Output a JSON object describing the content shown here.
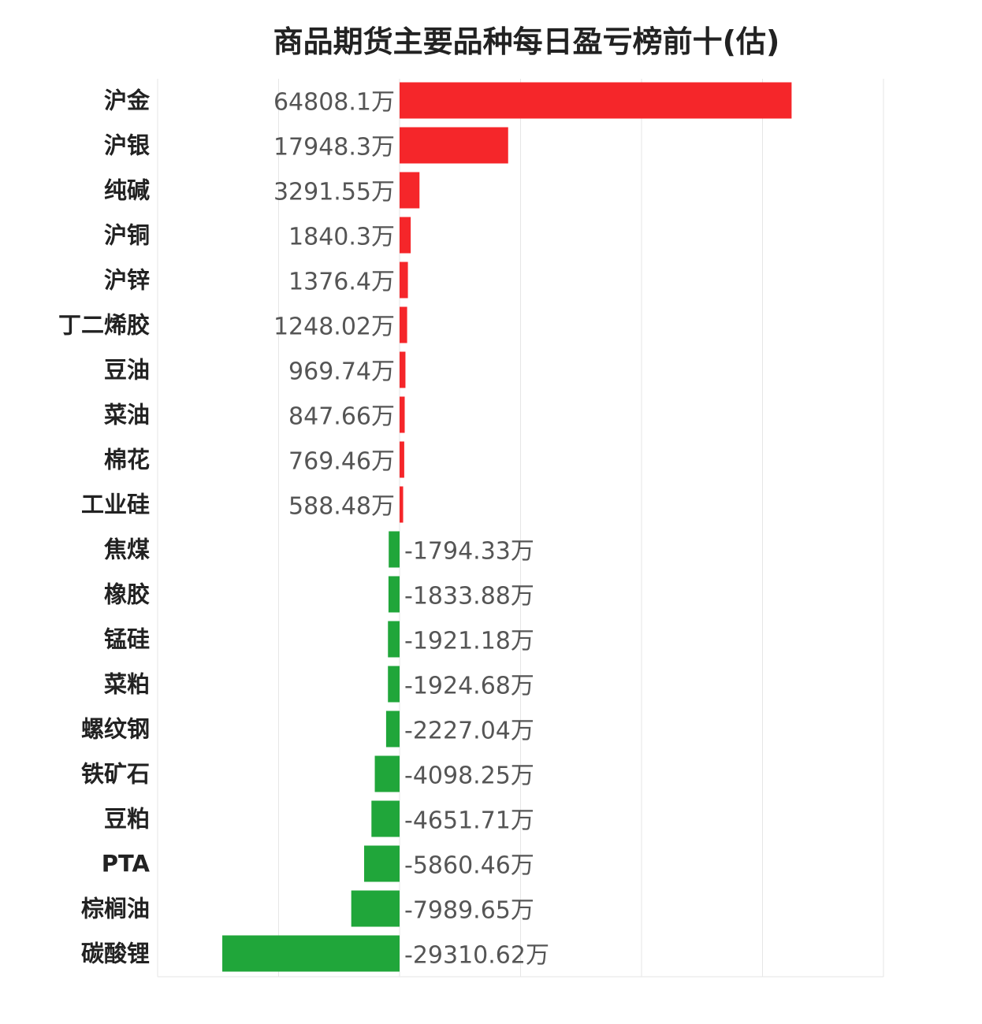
{
  "chart_data": {
    "type": "bar",
    "orientation": "horizontal",
    "title": "商品期货主要品种每日盈亏榜前十(估)",
    "xlabel": "",
    "ylabel": "",
    "unit": "万",
    "categories": [
      "沪金",
      "沪银",
      "纯碱",
      "沪铜",
      "沪锌",
      "丁二烯胶",
      "豆油",
      "菜油",
      "棉花",
      "工业硅",
      "焦煤",
      "橡胶",
      "锰硅",
      "菜粕",
      "螺纹钢",
      "铁矿石",
      "豆粕",
      "PTA",
      "棕榈油",
      "碳酸锂"
    ],
    "values": [
      64808.1,
      17948.3,
      3291.55,
      1840.3,
      1376.4,
      1248.02,
      969.74,
      847.66,
      769.46,
      588.48,
      -1794.33,
      -1833.88,
      -1921.18,
      -1924.68,
      -2227.04,
      -4098.25,
      -4651.71,
      -5860.46,
      -7989.65,
      -29310.62
    ],
    "value_labels": [
      "64808.1万",
      "17948.3万",
      "3291.55万",
      "1840.3万",
      "1376.4万",
      "1248.02万",
      "969.74万",
      "847.66万",
      "769.46万",
      "588.48万",
      "-1794.33万",
      "-1833.88万",
      "-1921.18万",
      "-1924.68万",
      "-2227.04万",
      "-4098.25万",
      "-4651.71万",
      "-5860.46万",
      "-7989.65万",
      "-29310.62万"
    ],
    "xlim": [
      -40000,
      80000
    ],
    "grid": true,
    "legend": "none",
    "colors": {
      "positive": "#f5262a",
      "negative": "#20a63a",
      "grid": "#e6e6e6"
    }
  }
}
